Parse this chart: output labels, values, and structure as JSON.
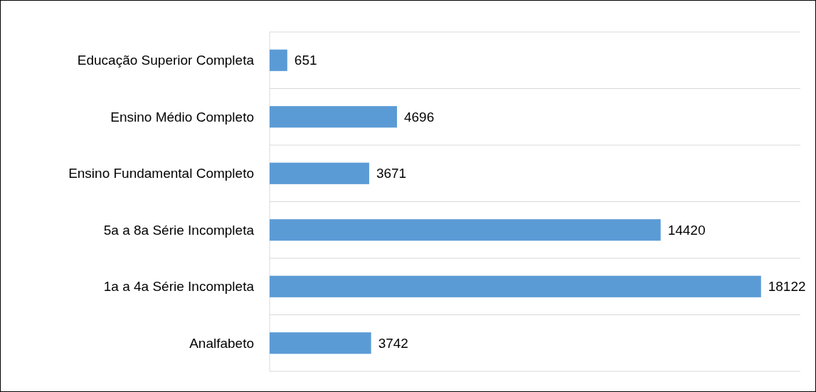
{
  "chart_data": {
    "type": "bar",
    "orientation": "horizontal",
    "categories": [
      "Educação Superior Completa",
      "Ensino Médio Completo",
      "Ensino Fundamental Completo",
      "5a a 8a Série Incompleta",
      "1a a 4a Série Incompleta",
      "Analfabeto"
    ],
    "values": [
      651,
      4696,
      3671,
      14420,
      18122,
      3742
    ],
    "color": "#5b9bd5",
    "data_labels": true,
    "grid": "y"
  }
}
